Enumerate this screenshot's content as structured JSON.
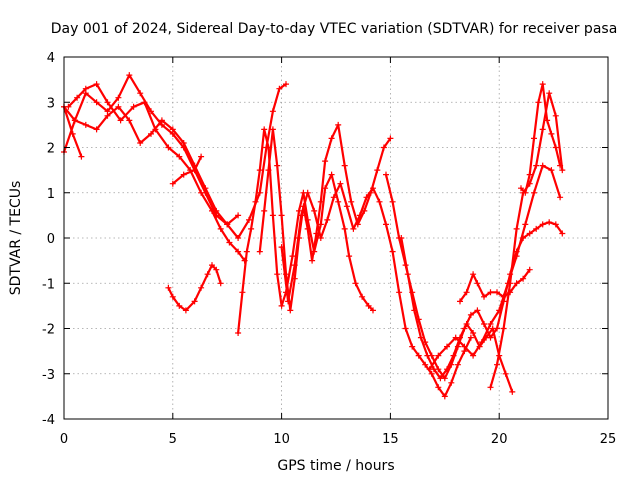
{
  "colors": {
    "series": "#ff0000",
    "grid": "#a0a0a0",
    "axis": "#000000"
  },
  "chart_data": {
    "type": "scatter",
    "title": "Day 001 of 2024, Sidereal Day-to-day VTEC variation (SDTVAR) for receiver pasa",
    "xlabel": "GPS time / hours",
    "ylabel": "SDTVAR / TECUs",
    "xlim": [
      0,
      25
    ],
    "ylim": [
      -4,
      4
    ],
    "xticks": [
      0,
      5,
      10,
      15,
      20,
      25
    ],
    "yticks": [
      -4,
      -3,
      -2,
      -1,
      0,
      1,
      2,
      3,
      4
    ],
    "grid": true,
    "marker": "+",
    "series": [
      {
        "x": [
          0.0,
          0.5,
          1.0,
          1.5,
          2.0,
          2.5,
          3.0,
          3.5,
          4.0,
          4.5,
          5.0,
          5.5,
          6.0,
          6.5,
          7.0,
          7.5,
          8.0,
          8.5,
          9.0,
          9.3,
          9.6,
          9.9,
          10.2
        ],
        "y": [
          1.9,
          2.6,
          3.2,
          3.0,
          2.8,
          3.1,
          3.6,
          3.2,
          2.8,
          2.5,
          2.3,
          2.0,
          1.5,
          1.0,
          0.5,
          0.3,
          0.0,
          0.4,
          1.0,
          2.0,
          2.8,
          3.3,
          3.4
        ]
      },
      {
        "x": [
          0.0,
          0.5,
          1.0,
          1.5,
          2.0,
          2.5,
          3.0,
          3.5,
          4.0,
          4.5,
          5.0,
          5.5,
          6.0,
          6.5,
          7.0,
          7.5,
          8.0
        ],
        "y": [
          2.9,
          2.6,
          2.5,
          2.4,
          2.7,
          2.9,
          2.6,
          2.1,
          2.3,
          2.6,
          2.4,
          2.1,
          1.6,
          1.1,
          0.6,
          0.3,
          0.5
        ]
      },
      {
        "x": [
          0.2,
          0.6,
          1.0,
          1.5,
          2.0,
          2.6,
          3.2,
          3.7,
          4.2,
          4.8,
          5.3,
          5.8,
          6.3,
          6.8,
          7.2,
          7.6,
          8.0,
          8.3
        ],
        "y": [
          2.9,
          3.1,
          3.3,
          3.4,
          3.0,
          2.6,
          2.9,
          3.0,
          2.4,
          2.0,
          1.8,
          1.5,
          1.0,
          0.6,
          0.2,
          -0.1,
          -0.3,
          -0.5
        ]
      },
      {
        "x": [
          0.0,
          0.4,
          0.8
        ],
        "y": [
          2.9,
          2.3,
          1.8
        ]
      },
      {
        "x": [
          4.8,
          5.0,
          5.3,
          5.6,
          6.0,
          6.3,
          6.6,
          6.8,
          7.0,
          7.2
        ],
        "y": [
          -1.1,
          -1.3,
          -1.5,
          -1.6,
          -1.4,
          -1.1,
          -0.8,
          -0.6,
          -0.7,
          -1.0
        ]
      },
      {
        "x": [
          5.0,
          5.5,
          6.0,
          6.3
        ],
        "y": [
          1.2,
          1.4,
          1.5,
          1.8
        ]
      },
      {
        "x": [
          8.0,
          8.2,
          8.4,
          8.6,
          8.8,
          9.0,
          9.2,
          9.4,
          9.6,
          9.8,
          10.0,
          10.2,
          10.5,
          10.8,
          11.0,
          11.2,
          11.5,
          11.8,
          12.0,
          12.3,
          12.6,
          12.9,
          13.1,
          13.4,
          13.7,
          14.0,
          14.2
        ],
        "y": [
          -2.1,
          -1.2,
          -0.3,
          0.2,
          0.8,
          1.5,
          2.4,
          2.0,
          0.5,
          -0.8,
          -1.5,
          -1.2,
          -0.4,
          0.6,
          1.0,
          0.4,
          -0.3,
          0.3,
          1.1,
          1.4,
          0.8,
          0.2,
          -0.4,
          -1.0,
          -1.3,
          -1.5,
          -1.6
        ]
      },
      {
        "x": [
          9.0,
          9.2,
          9.4,
          9.6,
          9.8,
          10.0,
          10.2,
          10.4,
          10.6,
          10.8,
          11.0,
          11.2,
          11.4,
          11.6,
          11.8,
          12.0,
          12.3,
          12.6,
          12.9,
          13.2,
          13.5,
          13.8,
          14.1,
          14.4,
          14.7,
          15.0
        ],
        "y": [
          -0.3,
          0.6,
          1.5,
          2.4,
          1.6,
          0.5,
          -0.8,
          -1.6,
          -0.9,
          0.0,
          0.7,
          0.2,
          -0.5,
          0.1,
          0.8,
          1.7,
          2.2,
          2.5,
          1.6,
          0.8,
          0.3,
          0.6,
          1.0,
          1.5,
          2.0,
          2.2
        ]
      },
      {
        "x": [
          10.0,
          10.3,
          10.6,
          10.9,
          11.2,
          11.5,
          11.8,
          12.1,
          12.4,
          12.7,
          13.0,
          13.3,
          13.6,
          13.9,
          14.2,
          14.5,
          14.8,
          15.1,
          15.4,
          15.7,
          16.0,
          16.3,
          16.6,
          16.9,
          17.2,
          17.5,
          17.8,
          18.1,
          18.4,
          18.7
        ],
        "y": [
          -0.2,
          -1.4,
          -0.6,
          0.5,
          1.0,
          0.6,
          0.0,
          0.4,
          0.9,
          1.2,
          0.7,
          0.2,
          0.5,
          0.9,
          1.1,
          0.8,
          0.3,
          -0.3,
          -1.2,
          -2.0,
          -2.4,
          -2.6,
          -2.8,
          -3.0,
          -3.3,
          -3.5,
          -3.2,
          -2.8,
          -2.5,
          -2.2
        ]
      },
      {
        "x": [
          14.8,
          15.1,
          15.4,
          15.7,
          16.0,
          16.3,
          16.6,
          16.9,
          17.2,
          17.5,
          17.8,
          18.1,
          18.4,
          18.7,
          19.0,
          19.3,
          19.6,
          19.9,
          20.2,
          20.5,
          20.8,
          21.1,
          21.4,
          21.7,
          22.0,
          22.3,
          22.6,
          22.9
        ],
        "y": [
          1.4,
          0.8,
          0.0,
          -0.6,
          -1.2,
          -1.8,
          -2.3,
          -2.6,
          -2.9,
          -3.1,
          -2.8,
          -2.4,
          -2.0,
          -1.7,
          -1.6,
          -1.9,
          -2.2,
          -2.0,
          -1.4,
          -0.8,
          -0.3,
          0.0,
          0.1,
          0.2,
          0.3,
          0.35,
          0.3,
          0.1
        ]
      },
      {
        "x": [
          15.5,
          15.8,
          16.1,
          16.4,
          16.7,
          17.0,
          17.3,
          17.6,
          17.9,
          18.2,
          18.5,
          18.8,
          19.1,
          19.4,
          19.7,
          20.0,
          20.3,
          20.6
        ],
        "y": [
          0.0,
          -0.8,
          -1.6,
          -2.2,
          -2.6,
          -2.9,
          -3.1,
          -2.9,
          -2.6,
          -2.2,
          -1.9,
          -2.1,
          -2.4,
          -2.2,
          -2.0,
          -2.6,
          -3.0,
          -3.4
        ]
      },
      {
        "x": [
          16.8,
          17.2,
          17.6,
          18.0,
          18.4,
          18.8,
          19.2,
          19.6,
          20.0,
          20.4,
          20.8,
          21.2,
          21.6,
          22.0,
          22.4,
          22.8
        ],
        "y": [
          -2.9,
          -2.6,
          -2.4,
          -2.2,
          -2.4,
          -2.6,
          -2.3,
          -1.9,
          -1.6,
          -1.0,
          -0.4,
          0.3,
          1.0,
          1.6,
          1.5,
          0.9
        ]
      },
      {
        "x": [
          18.2,
          18.5,
          18.8,
          19.0,
          19.3,
          19.6,
          19.9,
          20.2,
          20.5,
          20.8,
          21.1,
          21.4
        ],
        "y": [
          -1.4,
          -1.2,
          -0.8,
          -1.0,
          -1.3,
          -1.2,
          -1.2,
          -1.3,
          -1.2,
          -1.0,
          -0.9,
          -0.7
        ]
      },
      {
        "x": [
          19.6,
          19.9,
          20.2,
          20.5,
          20.8,
          21.1,
          21.4,
          21.7,
          22.0,
          22.3,
          22.6,
          22.9
        ],
        "y": [
          -3.3,
          -2.8,
          -2.0,
          -1.0,
          0.2,
          1.0,
          1.2,
          1.6,
          2.4,
          3.2,
          2.7,
          1.5
        ]
      },
      {
        "x": [
          21.0,
          21.2,
          21.4,
          21.6,
          21.8,
          22.0,
          22.2,
          22.4,
          22.6,
          22.8
        ],
        "y": [
          1.1,
          1.0,
          1.4,
          2.2,
          3.0,
          3.4,
          2.6,
          2.3,
          2.0,
          1.6
        ]
      }
    ]
  }
}
